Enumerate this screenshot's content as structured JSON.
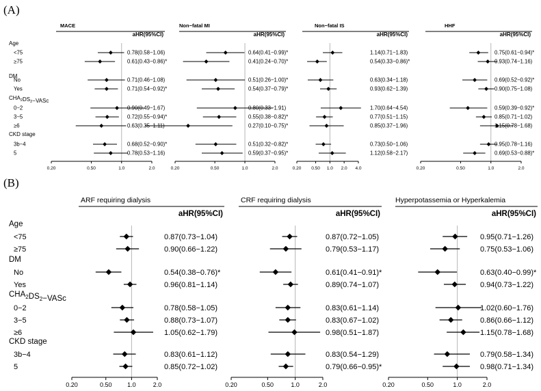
{
  "panels": [
    {
      "label": "(A)",
      "row_groups": [
        {
          "header": "Age",
          "rows": [
            "<75",
            "≥75"
          ]
        },
        {
          "header": "DM",
          "rows": [
            "No",
            "Yes"
          ]
        },
        {
          "header": "CHA2DS2-VASc",
          "rows": [
            "0−2",
            "3−5",
            "≥6"
          ]
        },
        {
          "header": "CKD stage",
          "rows": [
            "3b−4",
            "5"
          ]
        }
      ]
    },
    {
      "label": "(B)",
      "row_groups": [
        {
          "header": "Age",
          "rows": [
            "<75",
            "≥75"
          ]
        },
        {
          "header": "DM",
          "rows": [
            "No",
            "Yes"
          ]
        },
        {
          "header": "CHA2DS2-VASc",
          "rows": [
            "0−2",
            "3−5",
            "≥6"
          ]
        },
        {
          "header": "CKD stage",
          "rows": [
            "3b−4",
            "5"
          ]
        }
      ]
    }
  ],
  "chart_data": [
    {
      "type": "forest",
      "panel": "(A)",
      "title": "MACE",
      "value_header": "aHR(95%CI)",
      "scale": "log",
      "ticks": [
        "0.20",
        "0.50",
        "1.0",
        "2.0"
      ],
      "xlim": [
        0.2,
        2.0
      ],
      "ref": 1.0,
      "est": [
        0.78,
        0.61,
        0.71,
        0.71,
        0.9,
        0.72,
        0.63,
        0.68,
        0.78
      ],
      "lo": [
        0.58,
        0.43,
        0.46,
        0.54,
        0.49,
        0.55,
        0.35,
        0.52,
        0.53
      ],
      "hi": [
        1.06,
        0.86,
        1.08,
        0.92,
        1.67,
        0.94,
        1.11,
        0.9,
        1.16
      ],
      "text": [
        "0.78(0.58−1.06)",
        "0.61(0.43−0.86)*",
        "0.71(0.46−1.08)",
        "0.71(0.54−0.92)*",
        "0.90(0.49−1.67)",
        "0.72(0.55−0.94)*",
        "0.63(0.35−1.11)",
        "0.68(0.52−0.90)*",
        "0.78(0.53−1.16)"
      ]
    },
    {
      "type": "forest",
      "panel": "(A)",
      "title": "Non−fatal MI",
      "value_header": "aHR(95%CI)",
      "scale": "log",
      "ticks": [
        "0.20",
        "0.50",
        "1.0",
        "2.0"
      ],
      "xlim": [
        0.2,
        2.0
      ],
      "ref": 1.0,
      "est": [
        0.64,
        0.41,
        0.51,
        0.54,
        0.8,
        0.55,
        0.27,
        0.51,
        0.59
      ],
      "lo": [
        0.41,
        0.24,
        0.26,
        0.37,
        0.33,
        0.38,
        0.1,
        0.32,
        0.37
      ],
      "hi": [
        0.99,
        0.7,
        1.0,
        0.79,
        1.91,
        0.82,
        0.75,
        0.82,
        0.95
      ],
      "text": [
        "0.64(0.41−0.99)*",
        "0.41(0.24−0.70)*",
        "0.51(0.26−1.00)*",
        "0.54(0.37−0.79)*",
        "0.80(0.33−1.91)",
        "0.55(0.38−0.82)*",
        "0.27(0.10−0.75)*",
        "0.51(0.32−0.82)*",
        "0.59(0.37−0.95)*"
      ]
    },
    {
      "type": "forest",
      "panel": "(A)",
      "title": "Non−fatal IS",
      "value_header": "aHR(95%CI)",
      "scale": "log",
      "ticks": [
        "0.20",
        "0.50",
        "1.0",
        "2.0",
        "4.0"
      ],
      "xlim": [
        0.2,
        4.0
      ],
      "ref": 1.0,
      "est": [
        1.14,
        0.54,
        0.63,
        0.93,
        1.7,
        0.77,
        0.85,
        0.73,
        1.12
      ],
      "lo": [
        0.71,
        0.33,
        0.34,
        0.62,
        0.64,
        0.51,
        0.37,
        0.5,
        0.58
      ],
      "hi": [
        1.83,
        0.86,
        1.18,
        1.39,
        4.54,
        1.15,
        1.96,
        1.06,
        2.17
      ],
      "text": [
        "1.14(0.71−1.83)",
        "0.54(0.33−0.86)*",
        "0.63(0.34−1.18)",
        "0.93(0.62−1.39)",
        "1.70(0.64−4.54)",
        "0.77(0.51−1.15)",
        "0.85(0.37−1.96)",
        "0.73(0.50−1.06)",
        "1.12(0.58−2.17)"
      ]
    },
    {
      "type": "forest",
      "panel": "(A)",
      "title": "HHF",
      "value_header": "aHR(95%CI)",
      "scale": "log",
      "ticks": [
        "0.20",
        "0.50",
        "1.0",
        "2.0"
      ],
      "xlim": [
        0.2,
        2.0
      ],
      "ref": 1.0,
      "est": [
        0.75,
        0.93,
        0.69,
        0.9,
        0.59,
        0.85,
        1.15,
        0.95,
        0.69
      ],
      "lo": [
        0.61,
        0.74,
        0.52,
        0.75,
        0.39,
        0.71,
        0.78,
        0.78,
        0.53
      ],
      "hi": [
        0.94,
        1.16,
        0.92,
        1.08,
        0.92,
        1.02,
        1.68,
        1.16,
        0.88
      ],
      "text": [
        "0.75(0.61−0.94)*",
        "0.93(0.74−1.16)",
        "0.69(0.52−0.92)*",
        "0.90(0.75−1.08)",
        "0.59(0.39−0.92)*",
        "0.85(0.71−1.02)",
        "1.15(0.78−1.68)",
        "0.95(0.78−1.16)",
        "0.69(0.53−0.88)*"
      ]
    },
    {
      "type": "forest",
      "panel": "(B)",
      "title": "ARF requiring dialysis",
      "value_header": "aHR(95%CI)",
      "scale": "log",
      "ticks": [
        "0.20",
        "0.50",
        "1.0",
        "2.0"
      ],
      "xlim": [
        0.2,
        2.0
      ],
      "ref": 1.0,
      "est": [
        0.87,
        0.9,
        0.54,
        0.96,
        0.78,
        0.88,
        1.05,
        0.83,
        0.85
      ],
      "lo": [
        0.73,
        0.66,
        0.38,
        0.81,
        0.58,
        0.73,
        0.62,
        0.61,
        0.72
      ],
      "hi": [
        1.04,
        1.22,
        0.76,
        1.14,
        1.05,
        1.07,
        1.79,
        1.12,
        1.02
      ],
      "text": [
        "0.87(0.73−1.04)",
        "0.90(0.66−1.22)",
        "0.54(0.38−0.76)*",
        "0.96(0.81−1.14)",
        "0.78(0.58−1.05)",
        "0.88(0.73−1.07)",
        "1.05(0.62−1.79)",
        "0.83(0.61−1.12)",
        "0.85(0.72−1.02)"
      ]
    },
    {
      "type": "forest",
      "panel": "(B)",
      "title": "CRF requiring dialysis",
      "value_header": "aHR(95%CI)",
      "scale": "log",
      "ticks": [
        "0.20",
        "0.50",
        "1.0",
        "2.0"
      ],
      "xlim": [
        0.2,
        2.0
      ],
      "ref": 1.0,
      "est": [
        0.87,
        0.79,
        0.61,
        0.89,
        0.83,
        0.83,
        0.98,
        0.83,
        0.79
      ],
      "lo": [
        0.72,
        0.53,
        0.41,
        0.74,
        0.61,
        0.67,
        0.51,
        0.54,
        0.66
      ],
      "hi": [
        1.05,
        1.17,
        0.91,
        1.07,
        1.14,
        1.02,
        1.87,
        1.29,
        0.95
      ],
      "text": [
        "0.87(0.72−1.05)",
        "0.79(0.53−1.17)",
        "0.61(0.41−0.91)*",
        "0.89(0.74−1.07)",
        "0.83(0.61−1.14)",
        "0.83(0.67−1.02)",
        "0.98(0.51−1.87)",
        "0.83(0.54−1.29)",
        "0.79(0.66−0.95)*"
      ]
    },
    {
      "type": "forest",
      "panel": "(B)",
      "title": "Hyperpotassemia or Hyperkalemia",
      "value_header": "aHR(95%CI)",
      "scale": "log",
      "ticks": [
        "0.20",
        "0.50",
        "1.0",
        "2.0"
      ],
      "xlim": [
        0.2,
        2.0
      ],
      "ref": 1.0,
      "est": [
        0.95,
        0.75,
        0.63,
        0.94,
        1.02,
        0.86,
        1.15,
        0.79,
        0.98
      ],
      "lo": [
        0.71,
        0.53,
        0.4,
        0.73,
        0.6,
        0.66,
        0.78,
        0.58,
        0.71
      ],
      "hi": [
        1.26,
        1.06,
        0.99,
        1.22,
        1.76,
        1.12,
        1.68,
        1.34,
        1.34
      ],
      "text": [
        "0.95(0.71−1.26)",
        "0.75(0.53−1.06)",
        "0.63(0.40−0.99)*",
        "0.94(0.73−1.22)",
        "1.02(0.60−1.76)",
        "0.86(0.66−1.12)",
        "1.15(0.78−1.68)",
        "0.79(0.58−1.34)",
        "0.98(0.71−1.34)"
      ]
    }
  ]
}
